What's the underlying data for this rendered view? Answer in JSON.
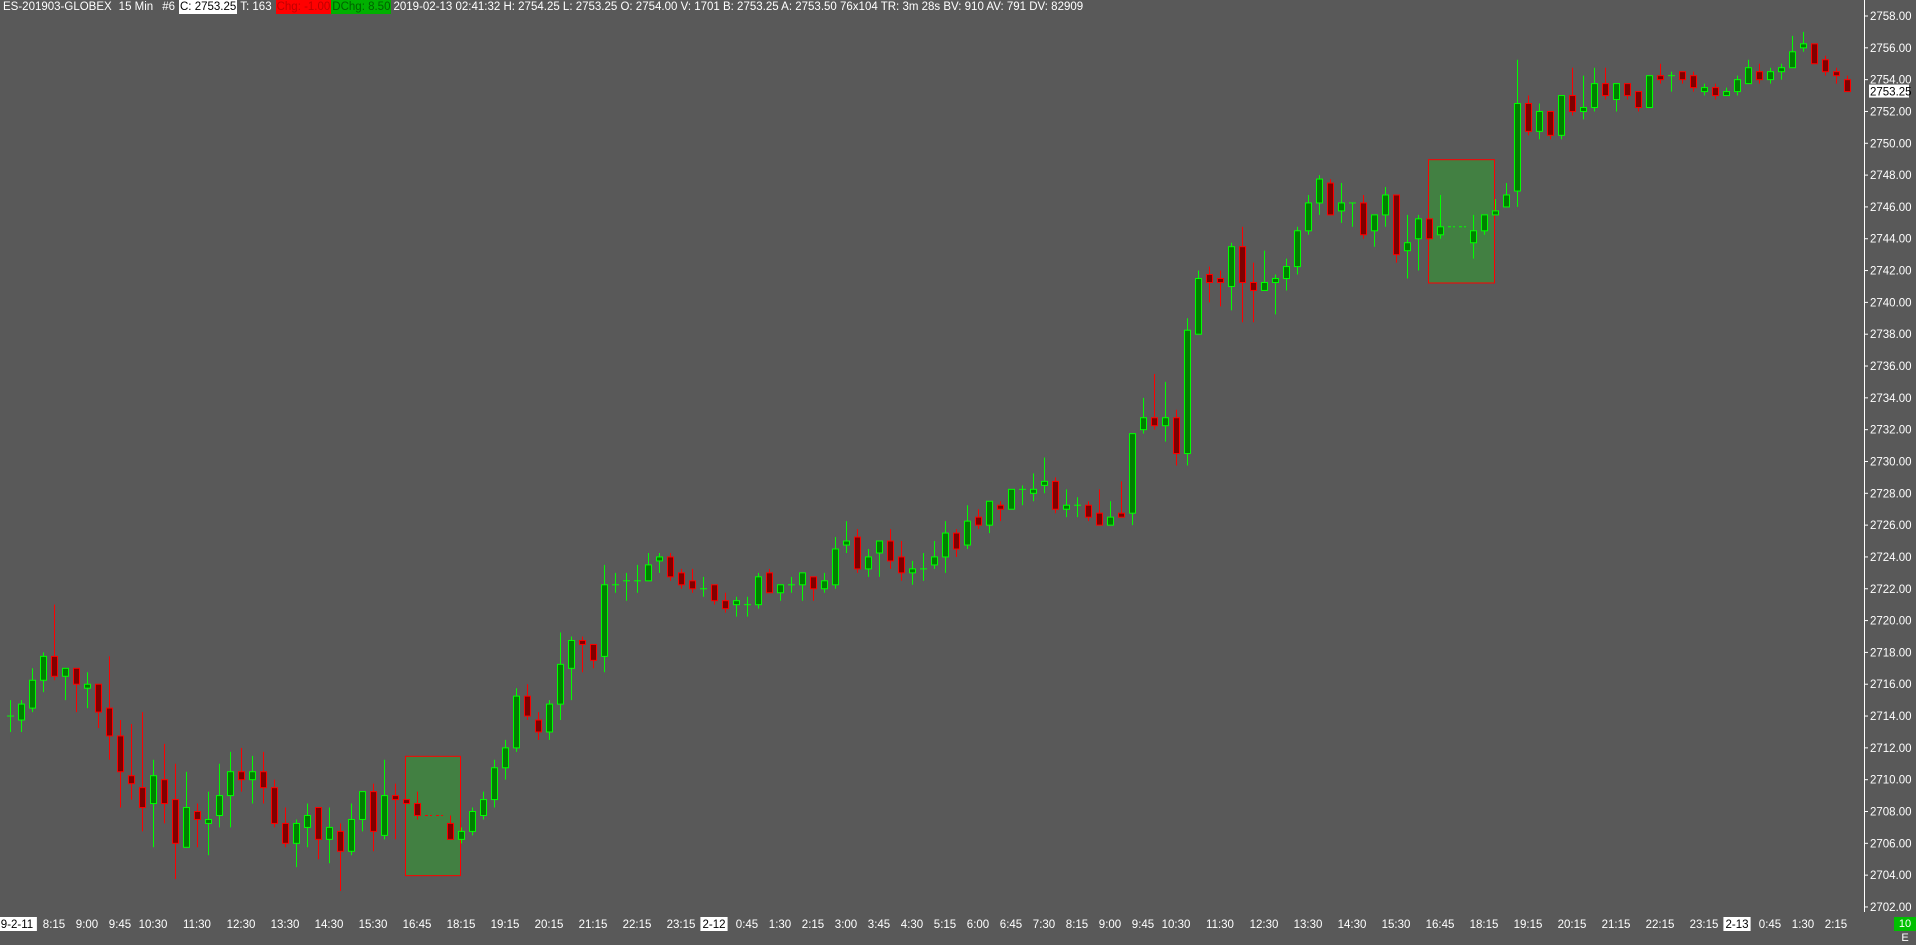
{
  "header": {
    "symbol": "ES-201903-GLOBEX",
    "interval": "15 Min",
    "chart_no": "#6",
    "close": "C: 2753.25",
    "ticks": "T: 163",
    "change": "Chg: -1.00",
    "daily_change": "DChg: 8.50",
    "details": "2019-02-13 02:41:32 H: 2754.25 L: 2753.25 O: 2754.00 V: 1701 B: 2753.25 A: 2753.50 76x104 TR: 3m 28s BV: 910 AV: 791 DV: 82909"
  },
  "colors": {
    "background": "#595959",
    "up_outline": "#00ff00",
    "up_fill": "#008000",
    "down_outline": "#ff0000",
    "down_fill": "#800000",
    "highlight_fill": "#428042",
    "highlight_border": "#ff0000",
    "axis": "#ffffff"
  },
  "price_label": "2753.25",
  "status_badge": "10 E",
  "chart_data": {
    "type": "candlestick",
    "ylim": [
      2701.5,
      2759
    ],
    "yticks": [
      2702,
      2704,
      2706,
      2708,
      2710,
      2712,
      2714,
      2716,
      2718,
      2720,
      2722,
      2724,
      2726,
      2728,
      2730,
      2732,
      2734,
      2736,
      2738,
      2740,
      2742,
      2744,
      2746,
      2748,
      2750,
      2752,
      2754,
      2756,
      2758
    ],
    "ytick_labels": [
      "2702.00",
      "2704.00",
      "2706.00",
      "2708.00",
      "2710.00",
      "2712.00",
      "2714.00",
      "2716.00",
      "2718.00",
      "2720.00",
      "2722.00",
      "2724.00",
      "2726.00",
      "2728.00",
      "2730.00",
      "2732.00",
      "2734.00",
      "2736.00",
      "2738.00",
      "2740.00",
      "2742.00",
      "2744.00",
      "2746.00",
      "2748.00",
      "2750.00",
      "2752.00",
      "2754.00",
      "2756.00",
      "2758.00"
    ],
    "xlabels": [
      {
        "text": "9-2-11",
        "bar": 0,
        "highlight": true
      },
      {
        "text": "8:15",
        "bar": 4
      },
      {
        "text": "9:00",
        "bar": 7
      },
      {
        "text": "9:45",
        "bar": 10
      },
      {
        "text": "10:30",
        "bar": 13
      },
      {
        "text": "11:30",
        "bar": 17
      },
      {
        "text": "12:30",
        "bar": 21
      },
      {
        "text": "13:30",
        "bar": 25
      },
      {
        "text": "14:30",
        "bar": 29
      },
      {
        "text": "15:30",
        "bar": 33
      },
      {
        "text": "16:45",
        "bar": 37
      },
      {
        "text": "18:15",
        "bar": 41
      },
      {
        "text": "19:15",
        "bar": 45
      },
      {
        "text": "20:15",
        "bar": 49
      },
      {
        "text": "21:15",
        "bar": 53
      },
      {
        "text": "22:15",
        "bar": 57
      },
      {
        "text": "23:15",
        "bar": 61
      },
      {
        "text": "2-12",
        "bar": 64,
        "highlight": true
      },
      {
        "text": "0:45",
        "bar": 67
      },
      {
        "text": "1:30",
        "bar": 70
      },
      {
        "text": "2:15",
        "bar": 73
      },
      {
        "text": "3:00",
        "bar": 76
      },
      {
        "text": "3:45",
        "bar": 79
      },
      {
        "text": "4:30",
        "bar": 82
      },
      {
        "text": "5:15",
        "bar": 85
      },
      {
        "text": "6:00",
        "bar": 88
      },
      {
        "text": "6:45",
        "bar": 91
      },
      {
        "text": "7:30",
        "bar": 94
      },
      {
        "text": "8:15",
        "bar": 97
      },
      {
        "text": "9:00",
        "bar": 100
      },
      {
        "text": "9:45",
        "bar": 103
      },
      {
        "text": "10:30",
        "bar": 106
      },
      {
        "text": "11:30",
        "bar": 110
      },
      {
        "text": "12:30",
        "bar": 114
      },
      {
        "text": "13:30",
        "bar": 118
      },
      {
        "text": "14:30",
        "bar": 122
      },
      {
        "text": "15:30",
        "bar": 126
      },
      {
        "text": "16:45",
        "bar": 130
      },
      {
        "text": "18:15",
        "bar": 134
      },
      {
        "text": "19:15",
        "bar": 138
      },
      {
        "text": "20:15",
        "bar": 142
      },
      {
        "text": "21:15",
        "bar": 146
      },
      {
        "text": "22:15",
        "bar": 150
      },
      {
        "text": "23:15",
        "bar": 154
      },
      {
        "text": "2-13",
        "bar": 157,
        "highlight": true
      },
      {
        "text": "0:45",
        "bar": 160
      },
      {
        "text": "1:30",
        "bar": 163
      },
      {
        "text": "2:15",
        "bar": 166
      }
    ],
    "highlight_zones": [
      {
        "from_bar": 36,
        "to_bar": 40,
        "high": 2711.5,
        "low": 2704.0
      },
      {
        "from_bar": 129,
        "to_bar": 134,
        "high": 2749.0,
        "low": 2741.25
      }
    ],
    "candles_ohlc": [
      [
        2714.0,
        2715.0,
        2713.0,
        2714.0
      ],
      [
        2713.75,
        2715.0,
        2713.0,
        2714.75
      ],
      [
        2714.5,
        2717.0,
        2714.25,
        2716.25
      ],
      [
        2716.25,
        2718.0,
        2715.5,
        2717.75
      ],
      [
        2717.75,
        2721.0,
        2716.25,
        2716.5
      ],
      [
        2716.5,
        2717.0,
        2715.0,
        2717.0
      ],
      [
        2717.0,
        2717.0,
        2714.25,
        2716.0
      ],
      [
        2715.75,
        2716.75,
        2714.5,
        2716.0
      ],
      [
        2716.0,
        2716.0,
        2713.25,
        2714.25
      ],
      [
        2714.5,
        2717.75,
        2711.25,
        2712.75
      ],
      [
        2712.75,
        2713.75,
        2708.25,
        2710.5
      ],
      [
        2710.25,
        2713.5,
        2708.75,
        2709.75
      ],
      [
        2709.5,
        2714.25,
        2706.75,
        2708.25
      ],
      [
        2708.5,
        2711.25,
        2705.75,
        2710.25
      ],
      [
        2710.0,
        2712.25,
        2707.25,
        2708.5
      ],
      [
        2708.75,
        2711.0,
        2703.75,
        2706.0
      ],
      [
        2705.75,
        2710.5,
        2705.75,
        2708.25
      ],
      [
        2708.0,
        2708.5,
        2705.75,
        2707.5
      ],
      [
        2707.25,
        2709.25,
        2705.25,
        2707.5
      ],
      [
        2707.75,
        2711.0,
        2707.0,
        2709.0
      ],
      [
        2709.0,
        2711.75,
        2707.0,
        2710.5
      ],
      [
        2710.5,
        2712.0,
        2709.25,
        2710.0
      ],
      [
        2710.0,
        2711.5,
        2708.5,
        2710.5
      ],
      [
        2710.5,
        2711.75,
        2708.5,
        2709.5
      ],
      [
        2709.5,
        2710.0,
        2707.0,
        2707.25
      ],
      [
        2707.25,
        2708.25,
        2705.75,
        2706.0
      ],
      [
        2706.0,
        2707.5,
        2704.5,
        2707.25
      ],
      [
        2707.0,
        2708.5,
        2705.75,
        2707.75
      ],
      [
        2708.25,
        2708.25,
        2705.0,
        2706.25
      ],
      [
        2706.25,
        2708.25,
        2704.75,
        2707.0
      ],
      [
        2706.75,
        2707.25,
        2703.0,
        2705.5
      ],
      [
        2705.5,
        2708.5,
        2705.25,
        2707.5
      ],
      [
        2707.5,
        2709.25,
        2706.75,
        2709.25
      ],
      [
        2709.25,
        2709.75,
        2705.5,
        2706.75
      ],
      [
        2706.5,
        2711.25,
        2706.25,
        2709.0
      ],
      [
        2709.0,
        2709.75,
        2706.25,
        2708.75
      ],
      [
        2708.75,
        2708.75,
        2708.5,
        2708.5
      ],
      [
        2708.5,
        2709.25,
        2707.5,
        2707.75
      ],
      [
        2707.75,
        2707.75,
        2707.75,
        2707.75
      ],
      [
        2707.75,
        2707.75,
        2707.75,
        2707.75
      ],
      [
        2707.25,
        2707.75,
        2706.25,
        2706.25
      ],
      [
        2706.25,
        2707.0,
        2706.0,
        2706.75
      ],
      [
        2706.75,
        2708.25,
        2706.5,
        2708.0
      ],
      [
        2707.75,
        2709.25,
        2707.5,
        2708.75
      ],
      [
        2708.75,
        2711.25,
        2708.25,
        2710.75
      ],
      [
        2710.75,
        2712.5,
        2710.0,
        2712.0
      ],
      [
        2712.0,
        2715.75,
        2711.75,
        2715.25
      ],
      [
        2715.25,
        2716.0,
        2713.75,
        2714.0
      ],
      [
        2713.75,
        2714.25,
        2712.5,
        2713.0
      ],
      [
        2713.0,
        2715.0,
        2712.5,
        2714.75
      ],
      [
        2714.75,
        2719.25,
        2713.75,
        2717.25
      ],
      [
        2717.0,
        2719.0,
        2715.0,
        2718.75
      ],
      [
        2718.75,
        2719.0,
        2716.75,
        2718.5
      ],
      [
        2718.5,
        2718.5,
        2717.0,
        2717.5
      ],
      [
        2717.75,
        2723.5,
        2716.75,
        2722.25
      ],
      [
        2722.25,
        2723.0,
        2721.75,
        2722.25
      ],
      [
        2722.5,
        2723.0,
        2721.25,
        2722.5
      ],
      [
        2722.5,
        2723.5,
        2721.75,
        2722.5
      ],
      [
        2722.5,
        2724.25,
        2722.5,
        2723.5
      ],
      [
        2723.75,
        2724.25,
        2723.0,
        2724.0
      ],
      [
        2724.0,
        2724.25,
        2722.5,
        2722.75
      ],
      [
        2723.0,
        2723.25,
        2722.0,
        2722.25
      ],
      [
        2722.5,
        2723.25,
        2721.75,
        2722.0
      ],
      [
        2722.0,
        2722.75,
        2721.5,
        2722.0
      ],
      [
        2722.25,
        2722.25,
        2721.0,
        2721.25
      ],
      [
        2721.25,
        2721.75,
        2720.5,
        2720.75
      ],
      [
        2721.0,
        2721.5,
        2720.25,
        2721.25
      ],
      [
        2721.0,
        2721.5,
        2720.25,
        2721.0
      ],
      [
        2721.0,
        2723.0,
        2720.75,
        2722.75
      ],
      [
        2723.0,
        2723.25,
        2721.75,
        2721.75
      ],
      [
        2721.75,
        2722.25,
        2721.25,
        2722.25
      ],
      [
        2722.25,
        2722.75,
        2721.75,
        2722.25
      ],
      [
        2722.25,
        2723.0,
        2721.25,
        2723.0
      ],
      [
        2722.75,
        2722.75,
        2721.25,
        2722.0
      ],
      [
        2722.0,
        2723.0,
        2721.75,
        2722.5
      ],
      [
        2722.25,
        2725.25,
        2722.0,
        2724.5
      ],
      [
        2724.75,
        2726.25,
        2724.25,
        2725.0
      ],
      [
        2725.25,
        2725.75,
        2723.0,
        2723.25
      ],
      [
        2723.25,
        2724.5,
        2722.75,
        2724.0
      ],
      [
        2724.25,
        2725.0,
        2722.75,
        2725.0
      ],
      [
        2725.0,
        2725.75,
        2723.25,
        2723.75
      ],
      [
        2724.0,
        2725.0,
        2722.5,
        2723.0
      ],
      [
        2723.0,
        2723.75,
        2722.25,
        2723.25
      ],
      [
        2723.25,
        2724.25,
        2722.5,
        2723.25
      ],
      [
        2723.5,
        2725.0,
        2723.25,
        2724.0
      ],
      [
        2724.0,
        2726.25,
        2723.0,
        2725.5
      ],
      [
        2725.5,
        2725.75,
        2724.0,
        2724.5
      ],
      [
        2724.75,
        2727.25,
        2724.5,
        2726.25
      ],
      [
        2726.5,
        2727.0,
        2725.75,
        2726.0
      ],
      [
        2726.0,
        2727.5,
        2725.5,
        2727.5
      ],
      [
        2727.25,
        2727.5,
        2726.25,
        2727.0
      ],
      [
        2727.0,
        2728.25,
        2727.0,
        2728.25
      ],
      [
        2728.25,
        2728.5,
        2727.25,
        2728.25
      ],
      [
        2728.0,
        2729.25,
        2727.5,
        2728.25
      ],
      [
        2728.5,
        2730.25,
        2728.0,
        2728.75
      ],
      [
        2728.75,
        2729.0,
        2726.75,
        2727.0
      ],
      [
        2727.0,
        2728.25,
        2726.5,
        2727.25
      ],
      [
        2727.25,
        2727.75,
        2726.5,
        2727.25
      ],
      [
        2727.25,
        2727.5,
        2726.25,
        2726.5
      ],
      [
        2726.75,
        2728.25,
        2726.0,
        2726.0
      ],
      [
        2726.0,
        2727.5,
        2726.0,
        2726.5
      ],
      [
        2726.75,
        2728.75,
        2726.5,
        2726.5
      ],
      [
        2726.75,
        2731.75,
        2726.0,
        2731.75
      ],
      [
        2732.0,
        2734.0,
        2731.75,
        2732.75
      ],
      [
        2732.75,
        2735.5,
        2732.0,
        2732.25
      ],
      [
        2732.25,
        2735.0,
        2731.25,
        2732.75
      ],
      [
        2732.75,
        2733.25,
        2729.75,
        2730.5
      ],
      [
        2730.5,
        2739.0,
        2729.75,
        2738.25
      ],
      [
        2738.0,
        2742.0,
        2738.0,
        2741.5
      ],
      [
        2741.75,
        2742.25,
        2740.0,
        2741.25
      ],
      [
        2741.5,
        2742.0,
        2739.75,
        2741.25
      ],
      [
        2741.0,
        2743.75,
        2739.5,
        2743.5
      ],
      [
        2743.5,
        2744.75,
        2738.75,
        2741.25
      ],
      [
        2741.25,
        2742.5,
        2738.75,
        2740.75
      ],
      [
        2740.75,
        2743.25,
        2740.75,
        2741.25
      ],
      [
        2741.25,
        2741.75,
        2739.25,
        2741.5
      ],
      [
        2741.5,
        2742.75,
        2740.75,
        2742.25
      ],
      [
        2742.25,
        2744.75,
        2741.75,
        2744.5
      ],
      [
        2744.5,
        2746.75,
        2744.25,
        2746.25
      ],
      [
        2746.25,
        2748.0,
        2745.5,
        2747.75
      ],
      [
        2747.5,
        2747.75,
        2745.5,
        2745.5
      ],
      [
        2745.75,
        2747.5,
        2745.0,
        2746.25
      ],
      [
        2746.25,
        2746.25,
        2744.75,
        2746.25
      ],
      [
        2746.25,
        2746.75,
        2744.0,
        2744.25
      ],
      [
        2744.5,
        2745.5,
        2743.5,
        2745.5
      ],
      [
        2745.5,
        2747.25,
        2744.75,
        2746.75
      ],
      [
        2746.75,
        2746.75,
        2742.5,
        2743.0
      ],
      [
        2743.25,
        2745.5,
        2741.5,
        2743.75
      ],
      [
        2744.0,
        2745.5,
        2742.0,
        2745.25
      ],
      [
        2745.25,
        2745.25,
        2744.0,
        2744.0
      ],
      [
        2744.25,
        2746.75,
        2744.0,
        2744.75
      ],
      [
        2744.75,
        2744.75,
        2744.75,
        2744.75
      ],
      [
        2744.75,
        2744.75,
        2744.75,
        2744.75
      ],
      [
        2743.75,
        2745.5,
        2742.75,
        2744.5
      ],
      [
        2744.5,
        2745.5,
        2744.25,
        2745.5
      ],
      [
        2745.5,
        2746.5,
        2745.5,
        2745.75
      ],
      [
        2746.0,
        2747.5,
        2746.0,
        2746.75
      ],
      [
        2747.0,
        2755.25,
        2746.0,
        2752.5
      ],
      [
        2752.5,
        2753.0,
        2750.5,
        2750.75
      ],
      [
        2750.75,
        2752.5,
        2750.25,
        2752.0
      ],
      [
        2752.0,
        2752.0,
        2750.25,
        2750.5
      ],
      [
        2750.5,
        2753.0,
        2750.25,
        2753.0
      ],
      [
        2753.0,
        2754.75,
        2751.75,
        2752.0
      ],
      [
        2752.0,
        2754.25,
        2751.5,
        2752.25
      ],
      [
        2752.25,
        2754.75,
        2752.0,
        2753.75
      ],
      [
        2753.75,
        2754.75,
        2752.75,
        2753.0
      ],
      [
        2752.75,
        2753.75,
        2752.0,
        2753.75
      ],
      [
        2753.75,
        2753.75,
        2752.75,
        2753.0
      ],
      [
        2753.25,
        2753.25,
        2752.0,
        2752.25
      ],
      [
        2752.25,
        2754.25,
        2752.25,
        2754.25
      ],
      [
        2754.25,
        2755.0,
        2753.75,
        2754.0
      ],
      [
        2754.25,
        2754.5,
        2753.25,
        2754.25
      ],
      [
        2754.5,
        2754.5,
        2753.75,
        2754.0
      ],
      [
        2754.25,
        2754.5,
        2753.25,
        2753.5
      ],
      [
        2753.25,
        2753.75,
        2753.0,
        2753.5
      ],
      [
        2753.5,
        2753.75,
        2752.75,
        2753.0
      ],
      [
        2753.0,
        2753.5,
        2753.0,
        2753.25
      ],
      [
        2753.25,
        2754.25,
        2753.0,
        2754.0
      ],
      [
        2753.75,
        2755.25,
        2753.75,
        2754.75
      ],
      [
        2754.5,
        2755.0,
        2753.75,
        2754.0
      ],
      [
        2754.0,
        2754.75,
        2753.75,
        2754.5
      ],
      [
        2754.5,
        2755.0,
        2754.0,
        2754.75
      ],
      [
        2754.75,
        2756.75,
        2754.75,
        2755.75
      ],
      [
        2756.0,
        2757.0,
        2755.75,
        2756.25
      ],
      [
        2756.25,
        2756.25,
        2755.0,
        2755.0
      ],
      [
        2755.25,
        2755.5,
        2754.25,
        2754.5
      ],
      [
        2754.5,
        2754.75,
        2753.75,
        2754.25
      ],
      [
        2754.0,
        2754.25,
        2753.25,
        2753.25
      ]
    ]
  }
}
